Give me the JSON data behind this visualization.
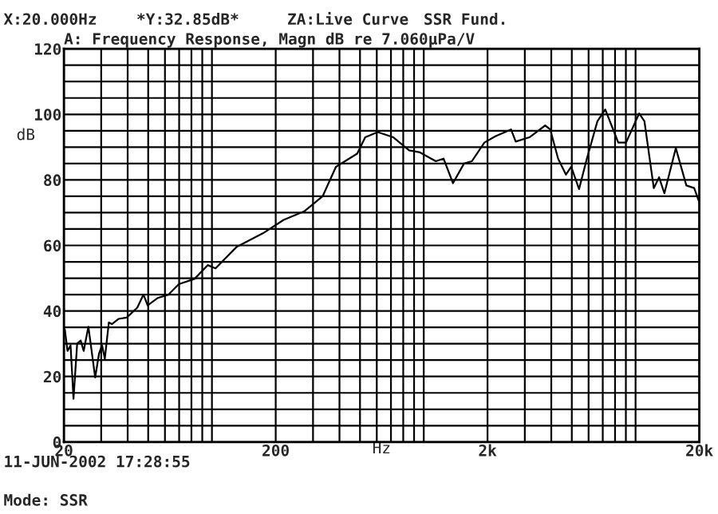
{
  "chart_data": {
    "type": "line",
    "title": "A: Frequency Response, Magn dB re 7.060µPa/V",
    "xlabel": "Hz",
    "ylabel": "dB",
    "annotations": [
      "X:20.000Hz",
      "*Y:32.85dB*",
      "ZA:Live Curve",
      "SSR Fund.",
      "11-JUN-2002 17:28:55",
      "Mode: SSR"
    ],
    "log": "x",
    "grid": true,
    "legend": false,
    "marker": "none",
    "line_style": "solid",
    "xlim": [
      20,
      20000
    ],
    "ylim": [
      0,
      120
    ],
    "xticks": [
      20,
      {
        "value": 30,
        "label": null
      },
      {
        "value": 40,
        "label": null
      },
      {
        "value": 50,
        "label": null
      },
      {
        "value": 60,
        "label": null
      },
      {
        "value": 70,
        "label": null
      },
      {
        "value": 80,
        "label": null
      },
      {
        "value": 90,
        "label": null
      },
      {
        "value": 100,
        "label": null
      },
      200,
      {
        "value": 300,
        "label": null
      },
      {
        "value": 400,
        "label": null
      },
      {
        "value": 500,
        "label": null
      },
      {
        "value": 600,
        "label": null
      },
      {
        "value": 700,
        "label": null
      },
      {
        "value": 800,
        "label": null
      },
      {
        "value": 900,
        "label": null
      },
      {
        "value": 1000,
        "label": null
      },
      {
        "value": 2000,
        "label": "2k"
      },
      {
        "value": 3000,
        "label": null
      },
      {
        "value": 4000,
        "label": null
      },
      {
        "value": 5000,
        "label": null
      },
      {
        "value": 6000,
        "label": null
      },
      {
        "value": 7000,
        "label": null
      },
      {
        "value": 8000,
        "label": null
      },
      {
        "value": 9000,
        "label": null
      },
      {
        "value": 10000,
        "label": null
      },
      {
        "value": 20000,
        "label": "20k"
      }
    ],
    "yticks": [
      0,
      {
        "value": 5,
        "label": null
      },
      {
        "value": 10,
        "label": null
      },
      {
        "value": 15,
        "label": null
      },
      20,
      {
        "value": 25,
        "label": null
      },
      {
        "value": 30,
        "label": null
      },
      {
        "value": 35,
        "label": null
      },
      40,
      {
        "value": 45,
        "label": null
      },
      {
        "value": 50,
        "label": null
      },
      {
        "value": 55,
        "label": null
      },
      60,
      {
        "value": 65,
        "label": null
      },
      {
        "value": 70,
        "label": null
      },
      {
        "value": 75,
        "label": null
      },
      80,
      {
        "value": 85,
        "label": null
      },
      {
        "value": 90,
        "label": null
      },
      {
        "value": 95,
        "label": null
      },
      100,
      {
        "value": 105,
        "label": null
      },
      {
        "value": 110,
        "label": null
      },
      {
        "value": 115,
        "label": null
      },
      120
    ],
    "series": [
      {
        "color": "#000000",
        "x": [
          20,
          20.2,
          20.8,
          21.5,
          22.2,
          23.1,
          24,
          24.8,
          26.1,
          28.1,
          29.3,
          30.3,
          31.2,
          32.6,
          33.7,
          36.3,
          39.6,
          44.4,
          47.5,
          49.7,
          55.6,
          62.4,
          69.8,
          82.8,
          95.5,
          104,
          131,
          174,
          218,
          274,
          333,
          385,
          485,
          529,
          606,
          719,
          853,
          960,
          1140,
          1240,
          1374,
          1549,
          1687,
          1933,
          2178,
          2583,
          2717,
          3154,
          3742,
          3955,
          4308,
          4690,
          4967,
          5410,
          5890,
          6605,
          7192,
          8285,
          9020,
          10400,
          11010,
          12190,
          12910,
          13680,
          15490,
          17370,
          18910,
          20000
        ],
        "values": [
          33,
          34.4,
          27.8,
          29.5,
          13.2,
          30,
          31,
          27.8,
          35.2,
          19.7,
          27,
          29.5,
          25.4,
          36.5,
          36,
          37.6,
          38,
          41,
          45,
          41.7,
          44,
          45,
          48.2,
          49.8,
          54,
          53,
          59.6,
          63.7,
          67.8,
          70.5,
          75,
          84,
          88,
          93,
          94.6,
          93,
          89,
          88.4,
          85.7,
          86.5,
          79,
          85,
          85.7,
          91.4,
          93.3,
          95.4,
          91.7,
          93,
          96.6,
          95.4,
          86.5,
          81.6,
          84,
          77.2,
          86.5,
          97.9,
          101.5,
          91.4,
          91.4,
          100.3,
          97.9,
          77.5,
          80.8,
          75.9,
          89.7,
          78.3,
          77.5,
          73.1
        ]
      }
    ]
  }
}
